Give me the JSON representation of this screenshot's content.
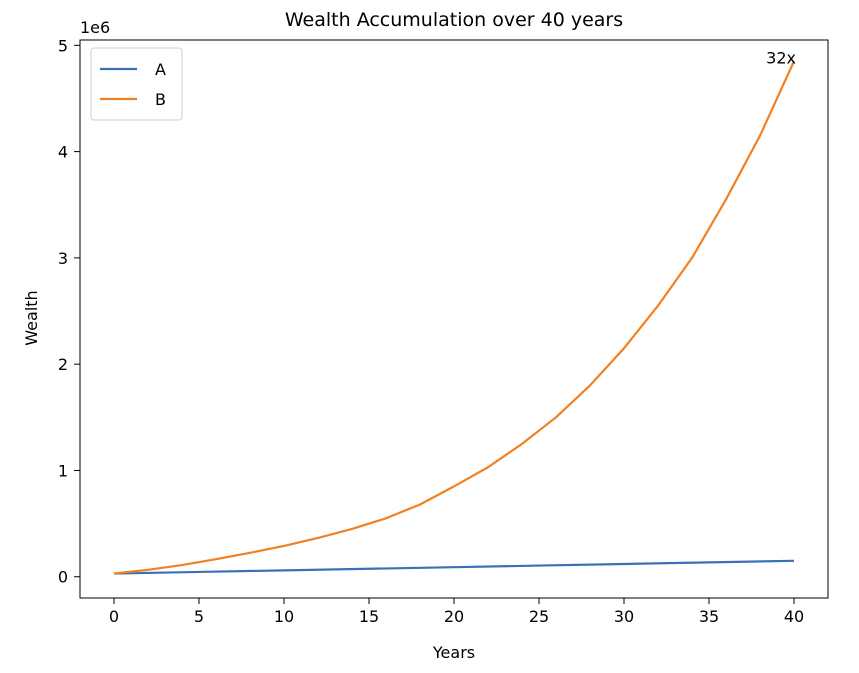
{
  "chart_data": {
    "type": "line",
    "title": "Wealth Accumulation over 40 years",
    "xlabel": "Years",
    "ylabel": "Wealth",
    "y_offset_label": "1e6",
    "xlim": [
      -2,
      42
    ],
    "ylim": [
      -0.2,
      5.05
    ],
    "x_ticks": [
      0,
      5,
      10,
      15,
      20,
      25,
      30,
      35,
      40
    ],
    "y_ticks": [
      0,
      1,
      2,
      3,
      4,
      5
    ],
    "grid": false,
    "legend_position": "top-left",
    "series": [
      {
        "name": "A",
        "color": "#3b6fb6",
        "x": [
          0,
          5,
          10,
          15,
          20,
          25,
          30,
          35,
          40
        ],
        "y": [
          0.03,
          0.045,
          0.06,
          0.075,
          0.09,
          0.105,
          0.12,
          0.135,
          0.15
        ]
      },
      {
        "name": "B",
        "color": "#f28022",
        "x": [
          0,
          2,
          4,
          6,
          8,
          10,
          12,
          14,
          16,
          18,
          20,
          22,
          24,
          26,
          28,
          30,
          32,
          34,
          36,
          38,
          40
        ],
        "y": [
          0.03,
          0.065,
          0.11,
          0.165,
          0.225,
          0.29,
          0.365,
          0.45,
          0.55,
          0.68,
          0.85,
          1.03,
          1.25,
          1.5,
          1.8,
          2.15,
          2.55,
          3.0,
          3.55,
          4.15,
          4.85
        ]
      }
    ],
    "annotations": [
      {
        "text": "32x",
        "x": 40,
        "y": 4.85
      }
    ]
  }
}
